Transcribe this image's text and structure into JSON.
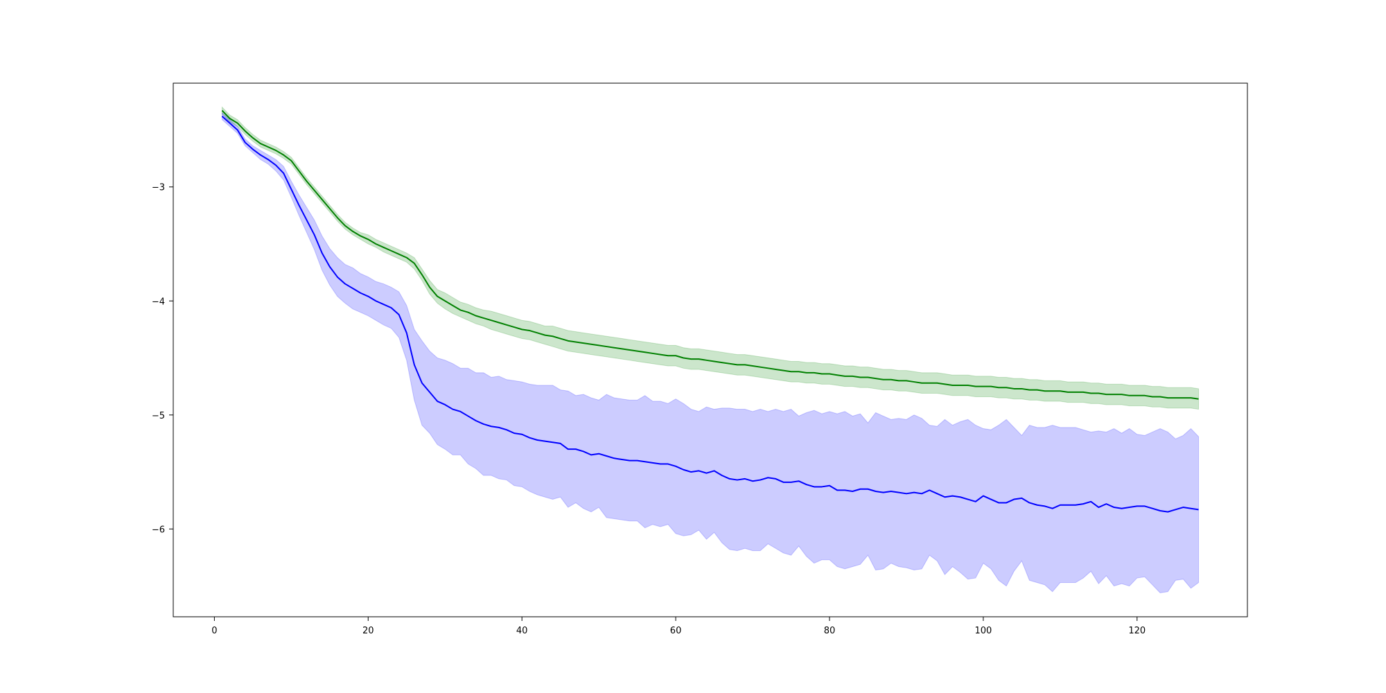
{
  "chart_data": {
    "type": "line",
    "title": "",
    "xlabel": "",
    "ylabel": "",
    "xlim": [
      -5.35,
      134.35
    ],
    "ylim": [
      -6.77,
      -2.09
    ],
    "grid": false,
    "legend": null,
    "x_ticks": [
      0,
      20,
      40,
      60,
      80,
      100,
      120
    ],
    "y_ticks": [
      -6,
      -5,
      -4,
      -3
    ],
    "x_tick_labels": [
      "0",
      "20",
      "40",
      "60",
      "80",
      "100",
      "120"
    ],
    "y_tick_labels": [
      "−6",
      "−5",
      "−4",
      "−3"
    ],
    "x": [
      1,
      2,
      3,
      4,
      5,
      6,
      7,
      8,
      9,
      10,
      11,
      12,
      13,
      14,
      15,
      16,
      17,
      18,
      19,
      20,
      21,
      22,
      23,
      24,
      25,
      26,
      27,
      28,
      29,
      30,
      31,
      32,
      33,
      34,
      35,
      36,
      37,
      38,
      39,
      40,
      41,
      42,
      43,
      44,
      45,
      46,
      47,
      48,
      49,
      50,
      51,
      52,
      53,
      54,
      55,
      56,
      57,
      58,
      59,
      60,
      61,
      62,
      63,
      64,
      65,
      66,
      67,
      68,
      69,
      70,
      71,
      72,
      73,
      74,
      75,
      76,
      77,
      78,
      79,
      80,
      81,
      82,
      83,
      84,
      85,
      86,
      87,
      88,
      89,
      90,
      91,
      92,
      93,
      94,
      95,
      96,
      97,
      98,
      99,
      100,
      101,
      102,
      103,
      104,
      105,
      106,
      107,
      108,
      109,
      110,
      111,
      112,
      113,
      114,
      115,
      116,
      117,
      118,
      119,
      120,
      121,
      122,
      123,
      124,
      125,
      126,
      127,
      128
    ],
    "series": [
      {
        "color": "#008000",
        "band_color": "#008000",
        "band_opacity": 0.2,
        "values": [
          -2.33,
          -2.4,
          -2.44,
          -2.51,
          -2.57,
          -2.62,
          -2.65,
          -2.68,
          -2.72,
          -2.77,
          -2.86,
          -2.95,
          -3.03,
          -3.11,
          -3.19,
          -3.27,
          -3.34,
          -3.39,
          -3.43,
          -3.46,
          -3.5,
          -3.53,
          -3.56,
          -3.59,
          -3.62,
          -3.67,
          -3.77,
          -3.88,
          -3.96,
          -4.0,
          -4.04,
          -4.08,
          -4.1,
          -4.13,
          -4.15,
          -4.17,
          -4.19,
          -4.21,
          -4.23,
          -4.25,
          -4.26,
          -4.28,
          -4.3,
          -4.31,
          -4.33,
          -4.35,
          -4.36,
          -4.37,
          -4.38,
          -4.39,
          -4.4,
          -4.41,
          -4.42,
          -4.43,
          -4.44,
          -4.45,
          -4.46,
          -4.47,
          -4.48,
          -4.48,
          -4.5,
          -4.51,
          -4.51,
          -4.52,
          -4.53,
          -4.54,
          -4.55,
          -4.56,
          -4.56,
          -4.57,
          -4.58,
          -4.59,
          -4.6,
          -4.61,
          -4.62,
          -4.62,
          -4.63,
          -4.63,
          -4.64,
          -4.64,
          -4.65,
          -4.66,
          -4.66,
          -4.67,
          -4.67,
          -4.68,
          -4.69,
          -4.69,
          -4.7,
          -4.7,
          -4.71,
          -4.72,
          -4.72,
          -4.72,
          -4.73,
          -4.74,
          -4.74,
          -4.74,
          -4.75,
          -4.75,
          -4.75,
          -4.76,
          -4.76,
          -4.77,
          -4.77,
          -4.78,
          -4.78,
          -4.79,
          -4.79,
          -4.79,
          -4.8,
          -4.8,
          -4.8,
          -4.81,
          -4.81,
          -4.82,
          -4.82,
          -4.82,
          -4.83,
          -4.83,
          -4.83,
          -4.84,
          -4.84,
          -4.85,
          -4.85,
          -4.85,
          -4.85,
          -4.86
        ],
        "lower": [
          -2.36,
          -2.43,
          -2.47,
          -2.54,
          -2.6,
          -2.65,
          -2.68,
          -2.71,
          -2.75,
          -2.8,
          -2.89,
          -2.98,
          -3.06,
          -3.14,
          -3.22,
          -3.3,
          -3.37,
          -3.42,
          -3.46,
          -3.5,
          -3.53,
          -3.57,
          -3.6,
          -3.63,
          -3.66,
          -3.72,
          -3.82,
          -3.94,
          -4.02,
          -4.07,
          -4.11,
          -4.14,
          -4.17,
          -4.2,
          -4.22,
          -4.25,
          -4.27,
          -4.29,
          -4.31,
          -4.33,
          -4.34,
          -4.36,
          -4.38,
          -4.4,
          -4.42,
          -4.44,
          -4.45,
          -4.46,
          -4.47,
          -4.48,
          -4.49,
          -4.5,
          -4.51,
          -4.52,
          -4.53,
          -4.54,
          -4.55,
          -4.56,
          -4.57,
          -4.57,
          -4.59,
          -4.6,
          -4.6,
          -4.61,
          -4.62,
          -4.63,
          -4.64,
          -4.65,
          -4.65,
          -4.66,
          -4.67,
          -4.68,
          -4.69,
          -4.7,
          -4.71,
          -4.71,
          -4.72,
          -4.72,
          -4.73,
          -4.73,
          -4.74,
          -4.75,
          -4.75,
          -4.76,
          -4.76,
          -4.77,
          -4.78,
          -4.78,
          -4.79,
          -4.79,
          -4.8,
          -4.81,
          -4.81,
          -4.81,
          -4.82,
          -4.83,
          -4.83,
          -4.83,
          -4.84,
          -4.84,
          -4.84,
          -4.85,
          -4.85,
          -4.86,
          -4.86,
          -4.87,
          -4.87,
          -4.88,
          -4.88,
          -4.88,
          -4.89,
          -4.89,
          -4.89,
          -4.9,
          -4.9,
          -4.91,
          -4.91,
          -4.91,
          -4.92,
          -4.92,
          -4.92,
          -4.93,
          -4.93,
          -4.94,
          -4.94,
          -4.94,
          -4.94,
          -4.95
        ],
        "upper": [
          -2.3,
          -2.37,
          -2.41,
          -2.48,
          -2.54,
          -2.59,
          -2.62,
          -2.65,
          -2.69,
          -2.74,
          -2.83,
          -2.92,
          -3.0,
          -3.08,
          -3.16,
          -3.24,
          -3.31,
          -3.36,
          -3.4,
          -3.42,
          -3.46,
          -3.49,
          -3.52,
          -3.55,
          -3.58,
          -3.62,
          -3.72,
          -3.82,
          -3.9,
          -3.93,
          -3.97,
          -4.01,
          -4.03,
          -4.06,
          -4.08,
          -4.09,
          -4.11,
          -4.13,
          -4.15,
          -4.17,
          -4.18,
          -4.2,
          -4.22,
          -4.22,
          -4.24,
          -4.26,
          -4.27,
          -4.28,
          -4.29,
          -4.3,
          -4.31,
          -4.32,
          -4.33,
          -4.34,
          -4.35,
          -4.36,
          -4.37,
          -4.38,
          -4.39,
          -4.39,
          -4.41,
          -4.42,
          -4.42,
          -4.43,
          -4.44,
          -4.45,
          -4.46,
          -4.47,
          -4.47,
          -4.48,
          -4.49,
          -4.5,
          -4.51,
          -4.52,
          -4.53,
          -4.53,
          -4.54,
          -4.54,
          -4.55,
          -4.55,
          -4.56,
          -4.57,
          -4.57,
          -4.58,
          -4.58,
          -4.59,
          -4.6,
          -4.6,
          -4.61,
          -4.61,
          -4.62,
          -4.63,
          -4.63,
          -4.63,
          -4.64,
          -4.65,
          -4.65,
          -4.65,
          -4.66,
          -4.66,
          -4.66,
          -4.67,
          -4.67,
          -4.68,
          -4.68,
          -4.69,
          -4.69,
          -4.7,
          -4.7,
          -4.7,
          -4.71,
          -4.71,
          -4.71,
          -4.72,
          -4.72,
          -4.73,
          -4.73,
          -4.73,
          -4.74,
          -4.74,
          -4.74,
          -4.75,
          -4.75,
          -4.76,
          -4.76,
          -4.76,
          -4.76,
          -4.77
        ]
      },
      {
        "color": "#0000ff",
        "band_color": "#0000ff",
        "band_opacity": 0.2,
        "values": [
          -2.38,
          -2.44,
          -2.5,
          -2.61,
          -2.67,
          -2.72,
          -2.76,
          -2.81,
          -2.88,
          -3.02,
          -3.16,
          -3.29,
          -3.42,
          -3.58,
          -3.7,
          -3.79,
          -3.85,
          -3.89,
          -3.93,
          -3.96,
          -4.0,
          -4.03,
          -4.06,
          -4.12,
          -4.28,
          -4.56,
          -4.72,
          -4.8,
          -4.88,
          -4.91,
          -4.95,
          -4.97,
          -5.01,
          -5.05,
          -5.08,
          -5.1,
          -5.11,
          -5.13,
          -5.16,
          -5.17,
          -5.2,
          -5.22,
          -5.23,
          -5.24,
          -5.25,
          -5.3,
          -5.3,
          -5.32,
          -5.35,
          -5.34,
          -5.36,
          -5.38,
          -5.39,
          -5.4,
          -5.4,
          -5.41,
          -5.42,
          -5.43,
          -5.43,
          -5.45,
          -5.48,
          -5.5,
          -5.49,
          -5.51,
          -5.49,
          -5.53,
          -5.56,
          -5.57,
          -5.56,
          -5.58,
          -5.57,
          -5.55,
          -5.56,
          -5.59,
          -5.59,
          -5.58,
          -5.61,
          -5.63,
          -5.63,
          -5.62,
          -5.66,
          -5.66,
          -5.67,
          -5.65,
          -5.65,
          -5.67,
          -5.68,
          -5.67,
          -5.68,
          -5.69,
          -5.68,
          -5.69,
          -5.66,
          -5.69,
          -5.72,
          -5.71,
          -5.72,
          -5.74,
          -5.76,
          -5.71,
          -5.74,
          -5.77,
          -5.77,
          -5.74,
          -5.73,
          -5.77,
          -5.79,
          -5.8,
          -5.82,
          -5.79,
          -5.79,
          -5.79,
          -5.78,
          -5.76,
          -5.81,
          -5.78,
          -5.81,
          -5.82,
          -5.81,
          -5.8,
          -5.8,
          -5.82,
          -5.84,
          -5.85,
          -5.83,
          -5.81,
          -5.82,
          -5.83
        ],
        "lower": [
          -2.41,
          -2.47,
          -2.53,
          -2.64,
          -2.7,
          -2.76,
          -2.8,
          -2.86,
          -2.94,
          -3.09,
          -3.25,
          -3.4,
          -3.55,
          -3.73,
          -3.86,
          -3.96,
          -4.02,
          -4.07,
          -4.1,
          -4.13,
          -4.17,
          -4.21,
          -4.24,
          -4.32,
          -4.52,
          -4.87,
          -5.09,
          -5.16,
          -5.26,
          -5.3,
          -5.35,
          -5.35,
          -5.43,
          -5.47,
          -5.53,
          -5.53,
          -5.56,
          -5.57,
          -5.62,
          -5.63,
          -5.67,
          -5.7,
          -5.72,
          -5.74,
          -5.72,
          -5.81,
          -5.77,
          -5.82,
          -5.85,
          -5.81,
          -5.9,
          -5.91,
          -5.92,
          -5.93,
          -5.93,
          -5.99,
          -5.96,
          -5.98,
          -5.96,
          -6.04,
          -6.06,
          -6.05,
          -6.01,
          -6.09,
          -6.03,
          -6.12,
          -6.18,
          -6.19,
          -6.17,
          -6.19,
          -6.19,
          -6.13,
          -6.17,
          -6.21,
          -6.23,
          -6.15,
          -6.24,
          -6.3,
          -6.27,
          -6.27,
          -6.33,
          -6.35,
          -6.33,
          -6.31,
          -6.23,
          -6.36,
          -6.35,
          -6.3,
          -6.33,
          -6.34,
          -6.36,
          -6.35,
          -6.23,
          -6.28,
          -6.4,
          -6.33,
          -6.38,
          -6.44,
          -6.43,
          -6.3,
          -6.35,
          -6.45,
          -6.5,
          -6.37,
          -6.28,
          -6.45,
          -6.47,
          -6.49,
          -6.55,
          -6.47,
          -6.47,
          -6.47,
          -6.43,
          -6.37,
          -6.48,
          -6.41,
          -6.5,
          -6.48,
          -6.5,
          -6.43,
          -6.42,
          -6.49,
          -6.56,
          -6.55,
          -6.45,
          -6.44,
          -6.52,
          -6.47
        ],
        "upper": [
          -2.35,
          -2.41,
          -2.47,
          -2.58,
          -2.64,
          -2.68,
          -2.72,
          -2.76,
          -2.82,
          -2.95,
          -3.07,
          -3.18,
          -3.29,
          -3.43,
          -3.54,
          -3.62,
          -3.68,
          -3.71,
          -3.76,
          -3.79,
          -3.83,
          -3.85,
          -3.88,
          -3.92,
          -4.04,
          -4.25,
          -4.35,
          -4.44,
          -4.5,
          -4.52,
          -4.55,
          -4.59,
          -4.59,
          -4.63,
          -4.63,
          -4.67,
          -4.66,
          -4.69,
          -4.7,
          -4.71,
          -4.73,
          -4.74,
          -4.74,
          -4.74,
          -4.78,
          -4.79,
          -4.83,
          -4.82,
          -4.85,
          -4.87,
          -4.82,
          -4.85,
          -4.86,
          -4.87,
          -4.87,
          -4.83,
          -4.88,
          -4.88,
          -4.9,
          -4.86,
          -4.9,
          -4.95,
          -4.97,
          -4.93,
          -4.95,
          -4.94,
          -4.94,
          -4.95,
          -4.95,
          -4.97,
          -4.95,
          -4.97,
          -4.95,
          -4.97,
          -4.95,
          -5.01,
          -4.98,
          -4.96,
          -4.99,
          -4.97,
          -4.99,
          -4.97,
          -5.01,
          -4.99,
          -5.07,
          -4.98,
          -5.01,
          -5.04,
          -5.03,
          -5.04,
          -5.0,
          -5.03,
          -5.09,
          -5.1,
          -5.04,
          -5.09,
          -5.06,
          -5.04,
          -5.09,
          -5.12,
          -5.13,
          -5.09,
          -5.04,
          -5.11,
          -5.18,
          -5.09,
          -5.11,
          -5.11,
          -5.09,
          -5.11,
          -5.11,
          -5.11,
          -5.13,
          -5.15,
          -5.14,
          -5.15,
          -5.12,
          -5.16,
          -5.12,
          -5.17,
          -5.18,
          -5.15,
          -5.12,
          -5.15,
          -5.21,
          -5.18,
          -5.12,
          -5.19
        ]
      }
    ]
  }
}
